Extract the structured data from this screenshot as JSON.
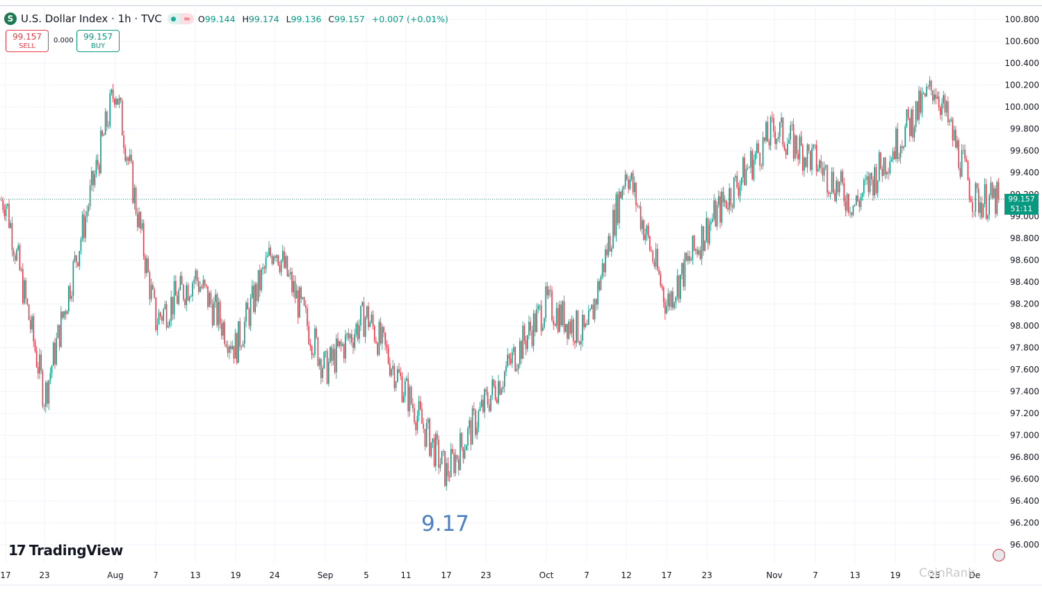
{
  "header": {
    "symbol_icon": "S",
    "title": "U.S. Dollar Index · 1h · TVC",
    "status_wave": "≈",
    "open_key": "O",
    "open": "99.144",
    "high_key": "H",
    "high": "99.174",
    "low_key": "L",
    "low": "99.136",
    "close_key": "C",
    "close": "99.157",
    "change": "+0.007 (+0.01%)"
  },
  "trade": {
    "sell_price": "99.157",
    "sell_label": "SELL",
    "spread": "0.000",
    "buy_price": "99.157",
    "buy_label": "BUY"
  },
  "price_tag": {
    "price": "99.157",
    "countdown": "51:11"
  },
  "annotation": "9.17",
  "logo": {
    "mark": "17",
    "text": "TradingView"
  },
  "watermark": "CoinRank",
  "icons": [
    "symbol-icon",
    "market-status-icon",
    "tradingview-logo-icon",
    "flag-icon"
  ],
  "colors": {
    "up": "#089981",
    "down": "#f23645",
    "annotation": "#4a7fc1"
  },
  "chart_data": {
    "type": "line",
    "title": "U.S. Dollar Index · 1h · TVC",
    "xlabel": "",
    "ylabel": "",
    "ylim": [
      96.0,
      100.8
    ],
    "y_ticks": [
      "100.800",
      "100.600",
      "100.400",
      "100.200",
      "100.000",
      "99.800",
      "99.600",
      "99.400",
      "99.200",
      "99.000",
      "98.800",
      "98.600",
      "98.400",
      "98.200",
      "98.000",
      "97.800",
      "97.600",
      "97.400",
      "97.200",
      "97.000",
      "96.800",
      "96.600",
      "96.400",
      "96.200",
      "96.000"
    ],
    "x_ticks": [
      "17",
      "23",
      "Aug",
      "7",
      "13",
      "19",
      "24",
      "Sep",
      "5",
      "11",
      "17",
      "23",
      "Oct",
      "7",
      "12",
      "17",
      "23",
      "Nov",
      "7",
      "13",
      "19",
      "25",
      "De"
    ],
    "grid": true,
    "last_price": 99.157,
    "series": [
      {
        "x": [
          "Jul 17",
          "Jul 23",
          "Aug 1",
          "Aug 7",
          "Aug 13",
          "Aug 19",
          "Aug 24",
          "Sep 1",
          "Sep 5",
          "Sep 11",
          "Sep 17",
          "Sep 23",
          "Oct 1",
          "Oct 7",
          "Oct 12",
          "Oct 17",
          "Oct 23",
          "Nov 1",
          "Nov 7",
          "Nov 13",
          "Nov 19",
          "Nov 25",
          "Dec 1"
        ],
        "values": [
          99.15,
          97.35,
          100.2,
          98.05,
          98.45,
          97.8,
          98.75,
          97.6,
          98.1,
          97.4,
          96.65,
          97.3,
          98.2,
          97.9,
          99.45,
          98.2,
          98.9,
          99.8,
          99.5,
          99.1,
          99.65,
          100.2,
          99.15
        ]
      }
    ]
  }
}
